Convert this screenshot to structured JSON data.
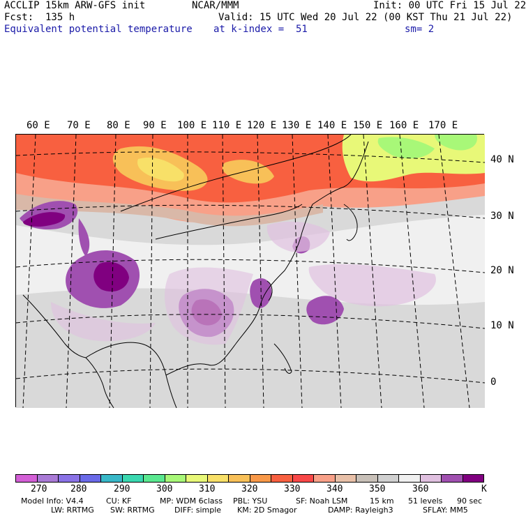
{
  "header": {
    "line1_left": "ACCLIP 15km ARW-GFS init",
    "line1_center": "NCAR/MMM",
    "line1_right": "Init: 00 UTC Fri 15 Jul 22",
    "line2_left": "Fcst:  135 h",
    "line2_right": "Valid: 15 UTC Wed 20 Jul 22 (00 KST Thu 21 Jul 22)",
    "line3_left": "Equivalent potential temperature",
    "line3_center": "at k-index =  51",
    "line3_right": "sm= 2"
  },
  "map": {
    "lon_labels": [
      "60 E",
      "70 E",
      "80 E",
      "90 E",
      "100 E",
      "110 E",
      "120 E",
      "130 E",
      "140 E",
      "150 E",
      "160 E",
      "170 E"
    ],
    "lat_labels": [
      "40 N",
      "30 N",
      "20 N",
      "10 N",
      "0"
    ]
  },
  "colorbar": {
    "colors": [
      "#d35fd6",
      "#a97ad6",
      "#8a72e6",
      "#6a6ae8",
      "#38b8c8",
      "#3ad8b0",
      "#5ae890",
      "#a8f878",
      "#e8f878",
      "#f8e068",
      "#f8c058",
      "#f89848",
      "#f86040",
      "#f84848",
      "#f8a088",
      "#e8c0a8",
      "#c8c0b8",
      "#d0d0d0",
      "#f0f0f0",
      "#e0c0e0",
      "#a050b0",
      "#800080"
    ],
    "tick_labels": [
      "270",
      "280",
      "290",
      "300",
      "310",
      "320",
      "330",
      "340",
      "350",
      "360",
      "K"
    ]
  },
  "footer": {
    "line1": [
      "Model Info: V4.4",
      "CU: KF",
      "MP: WDM 6class",
      "PBL: YSU",
      "SF: Noah LSM",
      "15 km",
      "51 levels",
      "90 sec"
    ],
    "line2": [
      "LW: RRTMG",
      "SW: RRTMG",
      "DIFF: simple",
      "KM: 2D Smagor",
      "DAMP: Rayleigh3",
      "SFLAY: MM5"
    ]
  }
}
